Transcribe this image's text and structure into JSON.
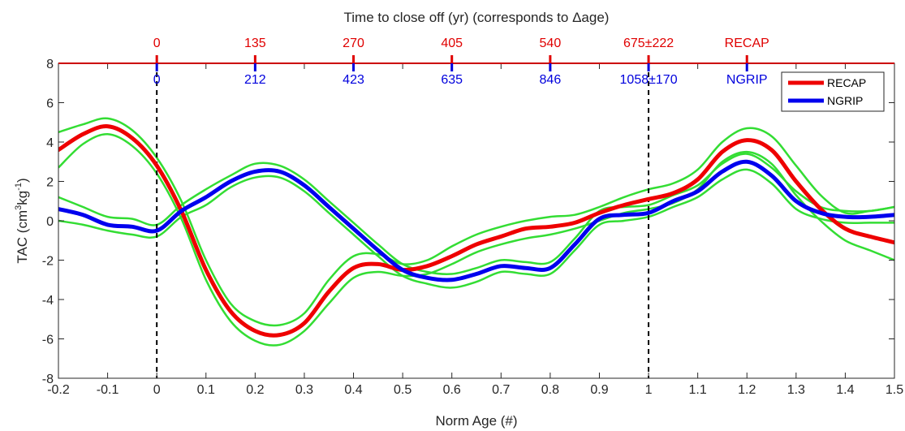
{
  "chart_data": {
    "type": "line",
    "title": "Time to close off (yr) (corresponds to Δage)",
    "xlabel": "Norm Age (#)",
    "ylabel_main": "TAC (cm",
    "ylabel_sup1": "3",
    "ylabel_mid": "kg",
    "ylabel_sup2": "-1",
    "ylabel_end": ")",
    "xlim": [
      -0.2,
      1.5
    ],
    "ylim": [
      -8,
      8
    ],
    "xticks": [
      -0.2,
      -0.1,
      0,
      0.1,
      0.2,
      0.3,
      0.4,
      0.5,
      0.6,
      0.7,
      0.8,
      0.9,
      1,
      1.1,
      1.2,
      1.3,
      1.4,
      1.5
    ],
    "xtick_labels": [
      "-0.2",
      "-0.1",
      "0",
      "0.1",
      "0.2",
      "0.3",
      "0.4",
      "0.5",
      "0.6",
      "0.7",
      "0.8",
      "0.9",
      "1",
      "1.1",
      "1.2",
      "1.3",
      "1.4",
      "1.5"
    ],
    "yticks": [
      -8,
      -6,
      -4,
      -2,
      0,
      2,
      4,
      6,
      8
    ],
    "ytick_labels": [
      "-8",
      "-6",
      "-4",
      "-2",
      "0",
      "2",
      "4",
      "6",
      "8"
    ],
    "vlines": [
      0,
      1
    ],
    "top_axis_recap": {
      "color": "#e00000",
      "positions": [
        0,
        0.2,
        0.4,
        0.6,
        0.8,
        1.0,
        1.2
      ],
      "labels": [
        "0",
        "135",
        "270",
        "405",
        "540",
        "675±222",
        "RECAP"
      ]
    },
    "top_axis_ngrip": {
      "color": "#0000dd",
      "positions": [
        0,
        0.2,
        0.4,
        0.6,
        0.8,
        1.0,
        1.2
      ],
      "labels": [
        "0",
        "212",
        "423",
        "635",
        "846",
        "1058±170",
        "NGRIP"
      ]
    },
    "series": [
      {
        "name": "RECAP",
        "color": "#ee0000",
        "x": [
          -0.2,
          -0.15,
          -0.1,
          -0.05,
          0,
          0.05,
          0.1,
          0.15,
          0.2,
          0.25,
          0.3,
          0.35,
          0.4,
          0.45,
          0.5,
          0.55,
          0.6,
          0.65,
          0.7,
          0.75,
          0.8,
          0.85,
          0.9,
          0.95,
          1.0,
          1.05,
          1.1,
          1.15,
          1.2,
          1.25,
          1.3,
          1.35,
          1.4,
          1.45,
          1.5
        ],
        "y": [
          3.6,
          4.4,
          4.8,
          4.2,
          2.8,
          0.5,
          -2.5,
          -4.6,
          -5.6,
          -5.8,
          -5.2,
          -3.6,
          -2.4,
          -2.2,
          -2.5,
          -2.3,
          -1.8,
          -1.2,
          -0.8,
          -0.4,
          -0.3,
          -0.1,
          0.4,
          0.8,
          1.1,
          1.4,
          2.1,
          3.5,
          4.1,
          3.6,
          2.0,
          0.6,
          -0.4,
          -0.8,
          -1.1
        ]
      },
      {
        "name": "NGRIP",
        "color": "#0000ee",
        "x": [
          -0.2,
          -0.15,
          -0.1,
          -0.05,
          0,
          0.05,
          0.1,
          0.15,
          0.2,
          0.25,
          0.3,
          0.35,
          0.4,
          0.45,
          0.5,
          0.55,
          0.6,
          0.65,
          0.7,
          0.75,
          0.8,
          0.85,
          0.9,
          0.95,
          1.0,
          1.05,
          1.1,
          1.15,
          1.2,
          1.25,
          1.3,
          1.35,
          1.4,
          1.45,
          1.5
        ],
        "y": [
          0.6,
          0.3,
          -0.2,
          -0.3,
          -0.5,
          0.5,
          1.2,
          2.0,
          2.5,
          2.5,
          1.8,
          0.7,
          -0.4,
          -1.5,
          -2.5,
          -2.9,
          -3.0,
          -2.7,
          -2.3,
          -2.4,
          -2.4,
          -1.2,
          0.1,
          0.3,
          0.4,
          1.0,
          1.5,
          2.5,
          3.0,
          2.3,
          1.0,
          0.4,
          0.2,
          0.2,
          0.3
        ]
      }
    ],
    "bands": [
      {
        "color": "#33dd33",
        "x": [
          -0.2,
          -0.15,
          -0.1,
          -0.05,
          0,
          0.05,
          0.1,
          0.15,
          0.2,
          0.25,
          0.3,
          0.35,
          0.4,
          0.45,
          0.5,
          0.55,
          0.6,
          0.65,
          0.7,
          0.75,
          0.8,
          0.85,
          0.9,
          0.95,
          1.0,
          1.05,
          1.1,
          1.15,
          1.2,
          1.25,
          1.3,
          1.35,
          1.4,
          1.45,
          1.5
        ],
        "y": [
          4.5,
          4.9,
          5.2,
          4.6,
          3.2,
          1.0,
          -2.0,
          -4.2,
          -5.1,
          -5.3,
          -4.7,
          -3.0,
          -1.8,
          -1.7,
          -2.2,
          -2.0,
          -1.3,
          -0.7,
          -0.3,
          0.0,
          0.2,
          0.3,
          0.7,
          1.2,
          1.6,
          1.9,
          2.6,
          4.0,
          4.7,
          4.3,
          2.8,
          1.3,
          0.4,
          0.5,
          0.7
        ]
      },
      {
        "color": "#33dd33",
        "x": [
          -0.2,
          -0.15,
          -0.1,
          -0.05,
          0,
          0.05,
          0.1,
          0.15,
          0.2,
          0.25,
          0.3,
          0.35,
          0.4,
          0.45,
          0.5,
          0.55,
          0.6,
          0.65,
          0.7,
          0.75,
          0.8,
          0.85,
          0.9,
          0.95,
          1.0,
          1.05,
          1.1,
          1.15,
          1.2,
          1.25,
          1.3,
          1.35,
          1.4,
          1.45,
          1.5
        ],
        "y": [
          2.7,
          3.9,
          4.4,
          3.8,
          2.4,
          0.1,
          -3.0,
          -5.1,
          -6.1,
          -6.3,
          -5.6,
          -4.2,
          -2.9,
          -2.6,
          -2.8,
          -2.7,
          -2.2,
          -1.6,
          -1.2,
          -0.9,
          -0.7,
          -0.4,
          0.0,
          0.4,
          0.6,
          0.9,
          1.6,
          3.0,
          3.5,
          2.9,
          1.3,
          0.0,
          -1.0,
          -1.5,
          -2.0
        ]
      },
      {
        "color": "#33dd33",
        "x": [
          -0.2,
          -0.15,
          -0.1,
          -0.05,
          0,
          0.05,
          0.1,
          0.15,
          0.2,
          0.25,
          0.3,
          0.35,
          0.4,
          0.45,
          0.5,
          0.55,
          0.6,
          0.65,
          0.7,
          0.75,
          0.8,
          0.85,
          0.9,
          0.95,
          1.0,
          1.05,
          1.1,
          1.15,
          1.2,
          1.25,
          1.3,
          1.35,
          1.4,
          1.45,
          1.5
        ],
        "y": [
          1.2,
          0.7,
          0.2,
          0.1,
          -0.2,
          0.8,
          1.6,
          2.3,
          2.9,
          2.8,
          2.1,
          1.0,
          -0.1,
          -1.2,
          -2.2,
          -2.6,
          -2.7,
          -2.4,
          -2.0,
          -2.1,
          -2.1,
          -0.9,
          0.5,
          0.7,
          0.8,
          1.3,
          1.8,
          2.9,
          3.4,
          2.7,
          1.5,
          0.7,
          0.5,
          0.5,
          0.7
        ]
      },
      {
        "color": "#33dd33",
        "x": [
          -0.2,
          -0.15,
          -0.1,
          -0.05,
          0,
          0.05,
          0.1,
          0.15,
          0.2,
          0.25,
          0.3,
          0.35,
          0.4,
          0.45,
          0.5,
          0.55,
          0.6,
          0.65,
          0.7,
          0.75,
          0.8,
          0.85,
          0.9,
          0.95,
          1.0,
          1.05,
          1.1,
          1.15,
          1.2,
          1.25,
          1.3,
          1.35,
          1.4,
          1.45,
          1.5
        ],
        "y": [
          0.0,
          -0.2,
          -0.5,
          -0.7,
          -0.8,
          0.2,
          0.8,
          1.7,
          2.2,
          2.2,
          1.5,
          0.4,
          -0.7,
          -1.8,
          -2.8,
          -3.2,
          -3.4,
          -3.1,
          -2.6,
          -2.7,
          -2.7,
          -1.5,
          -0.2,
          0.0,
          0.2,
          0.7,
          1.2,
          2.1,
          2.6,
          1.9,
          0.6,
          0.1,
          -0.1,
          -0.1,
          -0.1
        ]
      }
    ],
    "legend": {
      "placement": "top-right"
    },
    "grid": false
  }
}
